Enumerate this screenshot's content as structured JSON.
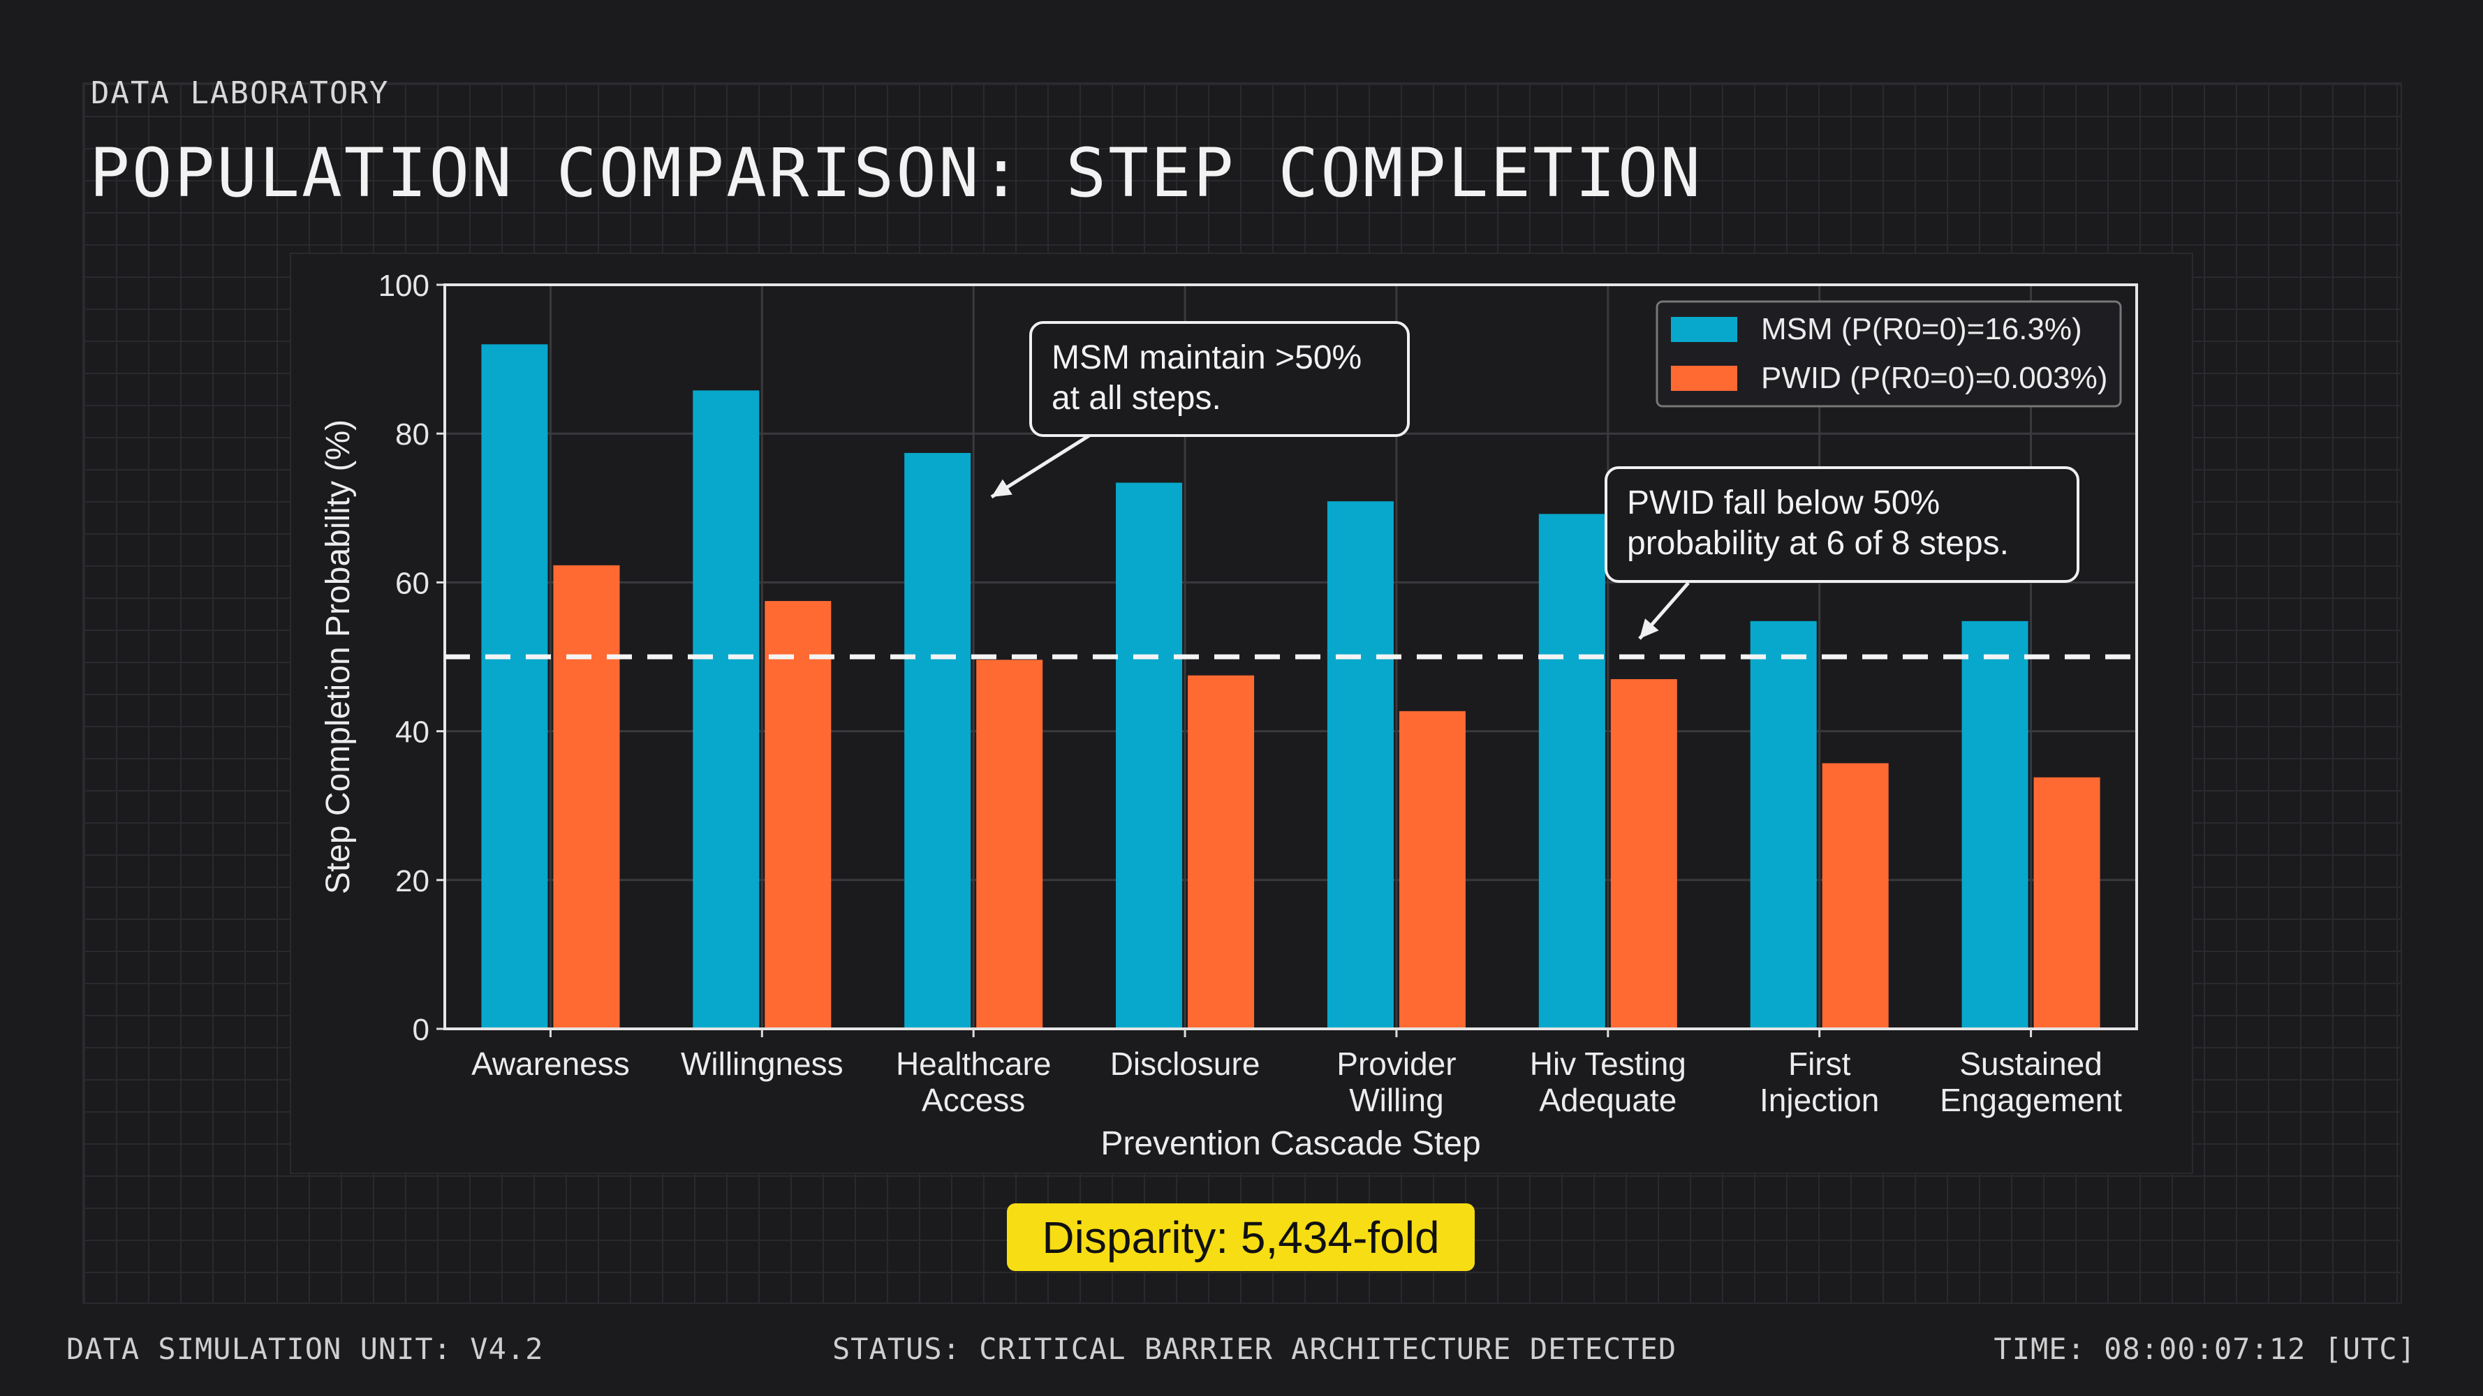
{
  "header": {
    "lab": "DATA LABORATORY",
    "title": "POPULATION COMPARISON: STEP COMPLETION"
  },
  "chart_data": {
    "type": "bar",
    "xlabel": "Prevention Cascade Step",
    "ylabel": "Step Completion Probability (%)",
    "ylim": [
      0,
      100
    ],
    "yticks": [
      "0",
      "20",
      "40",
      "60",
      "80",
      "100"
    ],
    "categories": [
      [
        "Awareness"
      ],
      [
        "Willingness"
      ],
      [
        "Healthcare",
        "Access"
      ],
      [
        "Disclosure"
      ],
      [
        "Provider",
        "Willing"
      ],
      [
        "Hiv Testing",
        "Adequate"
      ],
      [
        "First",
        "Injection"
      ],
      [
        "Sustained",
        "Engagement"
      ]
    ],
    "series": [
      {
        "name": "MSM (P(R0=0)=16.3%)",
        "color": "#08a8cc",
        "values": [
          92,
          85.8,
          77.4,
          73.4,
          70.9,
          69.2,
          54.8,
          54.8
        ]
      },
      {
        "name": "PWID (P(R0=0)=0.003%)",
        "color": "#ff6a33",
        "values": [
          62.3,
          57.5,
          49.6,
          47.5,
          42.7,
          47.0,
          35.7,
          33.8
        ]
      }
    ],
    "reference_line": 50,
    "grid": true,
    "legend": "top-right",
    "annotations": [
      {
        "lines": [
          "MSM maintain >50%",
          "at all steps."
        ]
      },
      {
        "lines": [
          "PWID fall below 50%",
          "probability at 6 of 8 steps."
        ]
      }
    ]
  },
  "badge": {
    "text": "Disparity: 5,434-fold",
    "color": "#f7dd14"
  },
  "footer": {
    "unit": "DATA SIMULATION UNIT: V4.2",
    "status": "STATUS: CRITICAL BARRIER ARCHITECTURE DETECTED",
    "time": "TIME: 08:00:07:12 [UTC]"
  }
}
